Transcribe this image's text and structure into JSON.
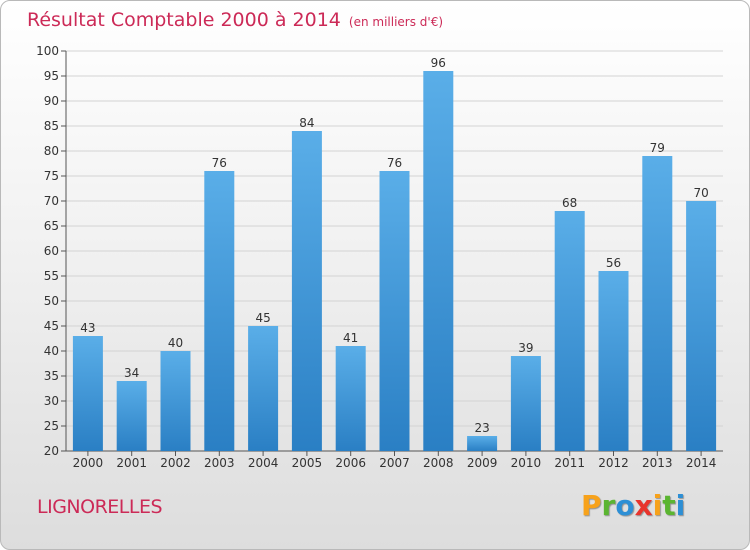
{
  "header": {
    "title": "Résultat Comptable 2000 à 2014",
    "subtitle": "(en milliers d'€)"
  },
  "footer": {
    "commune": "LIGNORELLES",
    "logo_text": "Proxiti"
  },
  "colors": {
    "title": "#cc2a57",
    "bar_top": "#5aaee8",
    "bar_bottom": "#2a7fc4",
    "logo_letters": [
      "#f7a21b",
      "#5bb531",
      "#2d8fd5",
      "#e8342c",
      "#f7a21b",
      "#5bb531",
      "#2d8fd5"
    ]
  },
  "chart_data": {
    "type": "bar",
    "categories": [
      "2000",
      "2001",
      "2002",
      "2003",
      "2004",
      "2005",
      "2006",
      "2007",
      "2008",
      "2009",
      "2010",
      "2011",
      "2012",
      "2013",
      "2014"
    ],
    "values": [
      43,
      34,
      40,
      76,
      45,
      84,
      41,
      76,
      96,
      23,
      39,
      68,
      56,
      79,
      70
    ],
    "ylim": [
      20,
      100
    ],
    "yticks": [
      20,
      25,
      30,
      35,
      40,
      45,
      50,
      55,
      60,
      65,
      70,
      75,
      80,
      85,
      90,
      95,
      100
    ],
    "grid": true,
    "data_labels": true
  }
}
